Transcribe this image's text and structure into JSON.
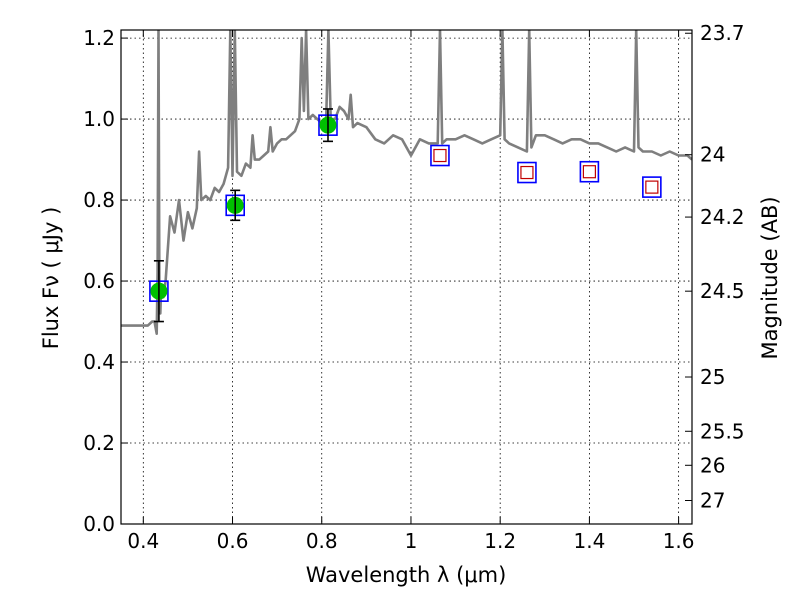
{
  "chart_data": {
    "type": "scatter",
    "xlabel": "Wavelength  λ (μm)",
    "ylabel": "Flux  Fν  ( μJy )",
    "y2label": "Magnitude (AB)",
    "xlim": [
      0.35,
      1.63
    ],
    "ylim": [
      0.0,
      1.22
    ],
    "grid": true,
    "x_ticks": [
      {
        "value": 0.4,
        "label": "0.4"
      },
      {
        "value": 0.6,
        "label": "0.6"
      },
      {
        "value": 0.8,
        "label": "0.8"
      },
      {
        "value": 1.0,
        "label": "1"
      },
      {
        "value": 1.2,
        "label": "1.2"
      },
      {
        "value": 1.4,
        "label": "1.4"
      },
      {
        "value": 1.6,
        "label": "1.6"
      }
    ],
    "y_ticks": [
      {
        "value": 0.0,
        "label": "0.0"
      },
      {
        "value": 0.2,
        "label": "0.2"
      },
      {
        "value": 0.4,
        "label": "0.4"
      },
      {
        "value": 0.6,
        "label": "0.6"
      },
      {
        "value": 0.8,
        "label": "0.8"
      },
      {
        "value": 1.0,
        "label": "1.0"
      },
      {
        "value": 1.2,
        "label": "1.2"
      }
    ],
    "y2_ticks": [
      {
        "flux": 1.212,
        "label": "23.7"
      },
      {
        "flux": 0.912,
        "label": "24"
      },
      {
        "flux": 0.758,
        "label": "24.2"
      },
      {
        "flux": 0.575,
        "label": "24.5"
      },
      {
        "flux": 0.363,
        "label": "25"
      },
      {
        "flux": 0.229,
        "label": "25.5"
      },
      {
        "flux": 0.145,
        "label": "26"
      },
      {
        "flux": 0.058,
        "label": "27"
      }
    ],
    "spectrum": {
      "color": "#7f7f7f",
      "x": [
        0.35,
        0.37,
        0.39,
        0.41,
        0.42,
        0.425,
        0.43,
        0.432,
        0.434,
        0.436,
        0.438,
        0.44,
        0.445,
        0.45,
        0.46,
        0.47,
        0.48,
        0.49,
        0.5,
        0.51,
        0.52,
        0.525,
        0.53,
        0.54,
        0.55,
        0.56,
        0.57,
        0.58,
        0.59,
        0.595,
        0.6,
        0.605,
        0.61,
        0.62,
        0.63,
        0.64,
        0.645,
        0.65,
        0.66,
        0.67,
        0.68,
        0.685,
        0.69,
        0.7,
        0.71,
        0.72,
        0.73,
        0.74,
        0.75,
        0.755,
        0.76,
        0.765,
        0.77,
        0.78,
        0.79,
        0.8,
        0.81,
        0.815,
        0.82,
        0.83,
        0.84,
        0.85,
        0.86,
        0.865,
        0.87,
        0.88,
        0.9,
        0.92,
        0.94,
        0.96,
        0.98,
        1.0,
        1.02,
        1.04,
        1.06,
        1.065,
        1.07,
        1.08,
        1.1,
        1.12,
        1.14,
        1.16,
        1.18,
        1.2,
        1.205,
        1.21,
        1.22,
        1.24,
        1.26,
        1.265,
        1.27,
        1.28,
        1.3,
        1.32,
        1.34,
        1.36,
        1.38,
        1.4,
        1.42,
        1.44,
        1.46,
        1.48,
        1.5,
        1.505,
        1.51,
        1.52,
        1.54,
        1.56,
        1.58,
        1.6,
        1.62,
        1.63
      ],
      "y": [
        0.49,
        0.49,
        0.49,
        0.49,
        0.5,
        0.5,
        0.47,
        0.62,
        1.22,
        0.56,
        0.52,
        0.58,
        0.56,
        0.6,
        0.76,
        0.72,
        0.8,
        0.7,
        0.77,
        0.73,
        0.78,
        0.92,
        0.8,
        0.81,
        0.8,
        0.83,
        0.82,
        0.84,
        0.88,
        1.22,
        0.86,
        1.22,
        0.87,
        0.86,
        0.89,
        0.88,
        0.96,
        0.9,
        0.9,
        0.91,
        0.92,
        0.98,
        0.92,
        0.94,
        0.95,
        0.95,
        0.96,
        0.97,
        1.0,
        1.2,
        1.02,
        1.22,
        1.0,
        1.01,
        1.0,
        0.99,
        1.0,
        1.22,
        1.0,
        1.0,
        1.03,
        1.02,
        1.0,
        1.06,
        0.98,
        0.99,
        0.98,
        0.95,
        0.94,
        0.96,
        0.95,
        0.91,
        0.95,
        0.94,
        0.94,
        1.22,
        0.94,
        0.95,
        0.95,
        0.96,
        0.95,
        0.94,
        0.95,
        0.96,
        1.22,
        0.95,
        0.94,
        0.93,
        0.92,
        1.22,
        0.93,
        0.96,
        0.96,
        0.95,
        0.94,
        0.95,
        0.95,
        0.94,
        0.94,
        0.93,
        0.92,
        0.93,
        0.92,
        1.22,
        0.93,
        0.92,
        0.92,
        0.91,
        0.92,
        0.91,
        0.91,
        0.9
      ]
    },
    "points": [
      {
        "x": 0.435,
        "y": 0.575,
        "kind": "measured",
        "err": 0.075
      },
      {
        "x": 0.606,
        "y": 0.787,
        "kind": "measured",
        "err": 0.037
      },
      {
        "x": 0.814,
        "y": 0.985,
        "kind": "measured",
        "err": 0.04
      },
      {
        "x": 1.065,
        "y": 0.91,
        "kind": "model"
      },
      {
        "x": 1.26,
        "y": 0.868,
        "kind": "model"
      },
      {
        "x": 1.4,
        "y": 0.87,
        "kind": "model"
      },
      {
        "x": 1.54,
        "y": 0.832,
        "kind": "model"
      }
    ],
    "colors": {
      "square_edge": "#0000ff",
      "measured_fill": "#00c000",
      "model_edge": "#c00000",
      "errorbar": "#000000"
    }
  }
}
